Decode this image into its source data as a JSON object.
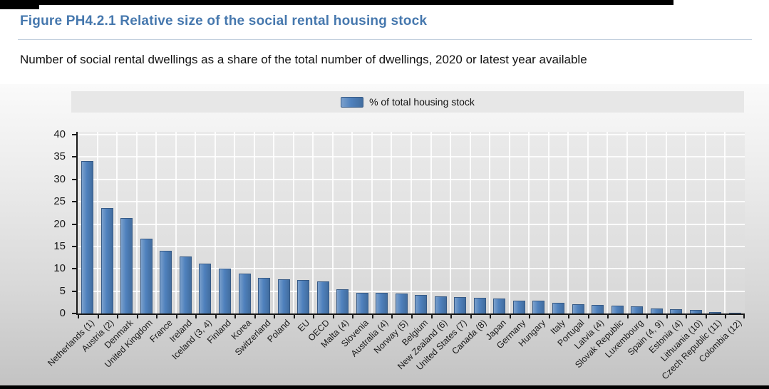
{
  "window": {
    "top_bar_color": "#000000",
    "bottom_bar_color": "#000000"
  },
  "header": {
    "title": "Figure PH4.2.1 Relative size of the social rental housing stock",
    "subtitle": "Number of social rental dwellings as a share of the total number of dwellings, 2020 or latest year available",
    "title_color": "#4678ae"
  },
  "legend": {
    "label": "% of total housing stock",
    "swatch_color": "#4f81bd"
  },
  "chart_data": {
    "type": "bar",
    "title": "Figure PH4.2.1 Relative size of the social rental housing stock",
    "subtitle": "Number of social rental dwellings as a share of the total number of dwellings, 2020 or latest year available",
    "legend_label": "% of total housing stock",
    "legend_position": "top",
    "bar_color": "#4f81bd",
    "grid": true,
    "xlabel": "",
    "ylabel": "",
    "ylim": [
      0,
      40
    ],
    "yticks": [
      0,
      5,
      10,
      15,
      20,
      25,
      30,
      35,
      40
    ],
    "categories": [
      "Netherlands (1)",
      "Austria (2)",
      "Denmark",
      "United Kingdom",
      "France",
      "Ireland",
      "Iceland (3, 4)",
      "Finland",
      "Korea",
      "Switzerland",
      "Poland",
      "EU",
      "OECD",
      "Malta (4)",
      "Slovenia",
      "Australia (4)",
      "Norway (5)",
      "Belgium",
      "New Zealand (6)",
      "United States (7)",
      "Canada (8)",
      "Japan",
      "Germany",
      "Hungary",
      "Italy",
      "Portugal",
      "Latvia (4)",
      "Slovak Republic",
      "Luxembourg",
      "Spain (4, 9)",
      "Estonia (4)",
      "Lithuania (10)",
      "Czech Republic (11)",
      "Colombia (12)"
    ],
    "values": [
      34.1,
      23.6,
      21.4,
      16.7,
      14.0,
      12.7,
      11.1,
      10.0,
      8.9,
      8.0,
      7.6,
      7.5,
      7.1,
      5.5,
      4.7,
      4.6,
      4.4,
      4.2,
      3.8,
      3.6,
      3.5,
      3.3,
      2.9,
      2.8,
      2.4,
      2.0,
      1.9,
      1.7,
      1.6,
      1.1,
      1.0,
      0.8,
      0.4,
      0.1
    ]
  }
}
